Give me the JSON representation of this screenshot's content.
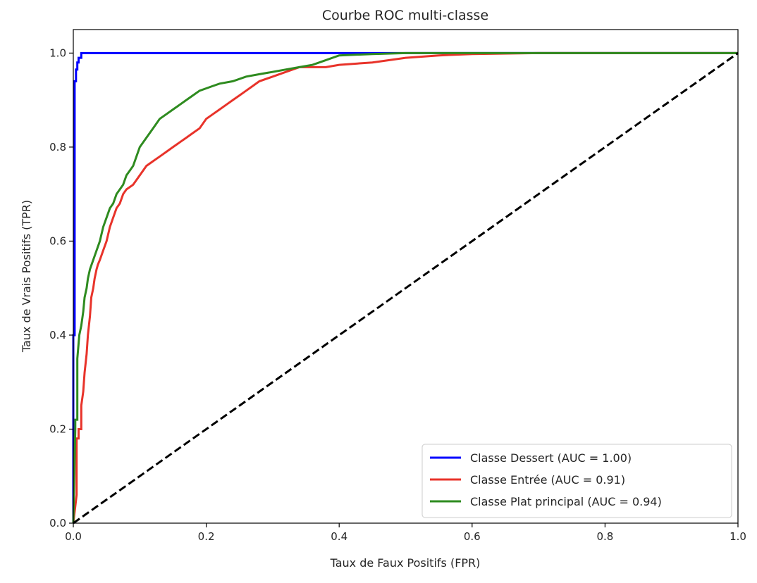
{
  "chart_data": {
    "type": "line",
    "title": "Courbe ROC multi-classe",
    "xlabel": "Taux de Faux Positifs (FPR)",
    "ylabel": "Taux de Vrais Positifs (TPR)",
    "xlim": [
      0.0,
      1.0
    ],
    "ylim": [
      0.0,
      1.05
    ],
    "xticks": [
      0.0,
      0.2,
      0.4,
      0.6,
      0.8,
      1.0
    ],
    "yticks": [
      0.0,
      0.2,
      0.4,
      0.6,
      0.8,
      1.0
    ],
    "xtick_labels": [
      "0.0",
      "0.2",
      "0.4",
      "0.6",
      "0.8",
      "1.0"
    ],
    "ytick_labels": [
      "0.0",
      "0.2",
      "0.4",
      "0.6",
      "0.8",
      "1.0"
    ],
    "grid": false,
    "legend_position": "lower right",
    "series": [
      {
        "name": "Classe Dessert (AUC = 1.00)",
        "color": "#0000ff",
        "style": "solid",
        "x": [
          0.0,
          0.0,
          0.002,
          0.002,
          0.004,
          0.004,
          0.006,
          0.006,
          0.008,
          0.008,
          0.012,
          0.012,
          0.1,
          0.3,
          0.44,
          0.6,
          1.0
        ],
        "y": [
          0.0,
          0.4,
          0.4,
          0.94,
          0.94,
          0.965,
          0.965,
          0.98,
          0.98,
          0.99,
          0.99,
          1.0,
          1.0,
          1.0,
          1.0,
          1.0,
          1.0
        ]
      },
      {
        "name": "Classe Entrée (AUC = 0.91)",
        "color": "#e8332a",
        "style": "solid",
        "x": [
          0.0,
          0.005,
          0.005,
          0.008,
          0.008,
          0.012,
          0.012,
          0.015,
          0.017,
          0.02,
          0.022,
          0.025,
          0.027,
          0.03,
          0.032,
          0.035,
          0.037,
          0.04,
          0.045,
          0.05,
          0.055,
          0.06,
          0.065,
          0.07,
          0.075,
          0.08,
          0.09,
          0.1,
          0.11,
          0.12,
          0.13,
          0.14,
          0.15,
          0.16,
          0.17,
          0.18,
          0.19,
          0.2,
          0.21,
          0.22,
          0.23,
          0.24,
          0.25,
          0.26,
          0.27,
          0.28,
          0.3,
          0.32,
          0.34,
          0.36,
          0.38,
          0.4,
          0.45,
          0.5,
          0.55,
          0.6,
          0.7,
          0.8,
          0.9,
          1.0
        ],
        "y": [
          0.0,
          0.06,
          0.18,
          0.18,
          0.2,
          0.2,
          0.25,
          0.28,
          0.32,
          0.36,
          0.4,
          0.44,
          0.48,
          0.5,
          0.52,
          0.54,
          0.55,
          0.56,
          0.58,
          0.6,
          0.63,
          0.65,
          0.67,
          0.68,
          0.7,
          0.71,
          0.72,
          0.74,
          0.76,
          0.77,
          0.78,
          0.79,
          0.8,
          0.81,
          0.82,
          0.83,
          0.84,
          0.86,
          0.87,
          0.88,
          0.89,
          0.9,
          0.91,
          0.92,
          0.93,
          0.94,
          0.95,
          0.96,
          0.97,
          0.97,
          0.97,
          0.975,
          0.98,
          0.99,
          0.995,
          0.998,
          1.0,
          1.0,
          1.0,
          1.0
        ]
      },
      {
        "name": "Classe Plat principal (AUC = 0.94)",
        "color": "#2e8b1f",
        "style": "solid",
        "x": [
          0.0,
          0.003,
          0.003,
          0.006,
          0.006,
          0.009,
          0.012,
          0.015,
          0.017,
          0.02,
          0.022,
          0.025,
          0.03,
          0.035,
          0.04,
          0.045,
          0.05,
          0.055,
          0.06,
          0.065,
          0.07,
          0.075,
          0.08,
          0.085,
          0.09,
          0.095,
          0.1,
          0.11,
          0.12,
          0.13,
          0.14,
          0.15,
          0.16,
          0.17,
          0.18,
          0.19,
          0.2,
          0.21,
          0.22,
          0.24,
          0.26,
          0.28,
          0.3,
          0.32,
          0.34,
          0.36,
          0.38,
          0.4,
          0.45,
          0.5,
          0.6,
          0.8,
          1.0
        ],
        "y": [
          0.0,
          0.2,
          0.22,
          0.22,
          0.35,
          0.4,
          0.42,
          0.45,
          0.48,
          0.5,
          0.52,
          0.54,
          0.56,
          0.58,
          0.6,
          0.63,
          0.65,
          0.67,
          0.68,
          0.7,
          0.71,
          0.72,
          0.74,
          0.75,
          0.76,
          0.78,
          0.8,
          0.82,
          0.84,
          0.86,
          0.87,
          0.88,
          0.89,
          0.9,
          0.91,
          0.92,
          0.925,
          0.93,
          0.935,
          0.94,
          0.95,
          0.955,
          0.96,
          0.965,
          0.97,
          0.975,
          0.985,
          0.995,
          0.998,
          1.0,
          1.0,
          1.0,
          1.0
        ]
      },
      {
        "name": "",
        "color": "#000000",
        "style": "dashed",
        "x": [
          0.0,
          1.0
        ],
        "y": [
          0.0,
          1.0
        ]
      }
    ],
    "legend": [
      {
        "label": "Classe Dessert (AUC = 1.00)",
        "color": "#0000ff"
      },
      {
        "label": "Classe Entrée (AUC = 0.91)",
        "color": "#e8332a"
      },
      {
        "label": "Classe Plat principal (AUC = 0.94)",
        "color": "#2e8b1f"
      }
    ]
  }
}
